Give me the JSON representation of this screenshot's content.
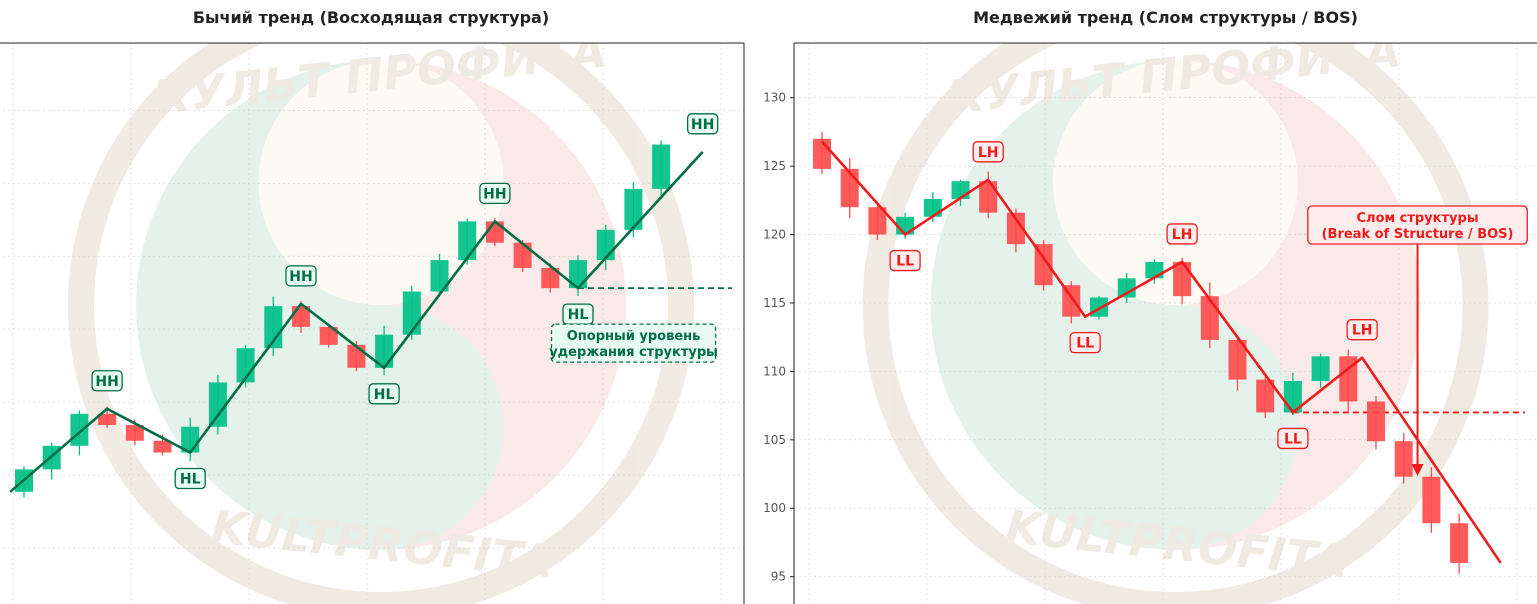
{
  "watermark": {
    "text_top": "КУЛЬТ ПРОФИТА",
    "text_bottom": "KULTPROFITA"
  },
  "colors": {
    "up": "#00c087",
    "down": "#ff4d4d",
    "bull_line": "#006e44",
    "bear_line": "#ee1c1c",
    "bull_label_bg": "#e8fbf3",
    "bear_label_bg": "#ffecec"
  },
  "chart_data": [
    {
      "type": "candlestick",
      "title": "Бычий тренд (Восходящая структура)",
      "xlabel": "",
      "ylabel": "",
      "ylim": [
        0,
        100
      ],
      "y_tick_labels_visible": false,
      "grid": true,
      "candles": [
        {
          "o": 20.0,
          "h": 24.5,
          "l": 19.0,
          "c": 24.0
        },
        {
          "o": 24.0,
          "h": 28.7,
          "l": 22.2,
          "c": 28.2
        },
        {
          "o": 28.2,
          "h": 34.5,
          "l": 26.5,
          "c": 33.9
        },
        {
          "o": 33.9,
          "h": 35.2,
          "l": 31.4,
          "c": 31.9
        },
        {
          "o": 31.9,
          "h": 32.9,
          "l": 28.3,
          "c": 29.1
        },
        {
          "o": 29.1,
          "h": 30.2,
          "l": 26.5,
          "c": 27.0
        },
        {
          "o": 27.0,
          "h": 33.2,
          "l": 25.4,
          "c": 31.6
        },
        {
          "o": 31.6,
          "h": 40.8,
          "l": 30.2,
          "c": 39.5
        },
        {
          "o": 39.5,
          "h": 46.2,
          "l": 38.6,
          "c": 45.6
        },
        {
          "o": 45.6,
          "h": 54.8,
          "l": 44.2,
          "c": 53.1
        },
        {
          "o": 53.1,
          "h": 54.0,
          "l": 48.3,
          "c": 49.4
        },
        {
          "o": 49.4,
          "h": 49.9,
          "l": 45.7,
          "c": 46.2
        },
        {
          "o": 46.2,
          "h": 46.9,
          "l": 41.5,
          "c": 42.1
        },
        {
          "o": 42.1,
          "h": 49.6,
          "l": 40.8,
          "c": 48.0
        },
        {
          "o": 48.0,
          "h": 56.7,
          "l": 47.1,
          "c": 55.7
        },
        {
          "o": 55.7,
          "h": 62.4,
          "l": 54.8,
          "c": 61.3
        },
        {
          "o": 61.3,
          "h": 68.7,
          "l": 60.5,
          "c": 68.2
        },
        {
          "o": 68.2,
          "h": 68.8,
          "l": 63.8,
          "c": 64.4
        },
        {
          "o": 64.4,
          "h": 64.9,
          "l": 59.2,
          "c": 59.9
        },
        {
          "o": 59.9,
          "h": 60.7,
          "l": 55.5,
          "c": 56.3
        },
        {
          "o": 56.3,
          "h": 62.1,
          "l": 54.9,
          "c": 61.3
        },
        {
          "o": 61.3,
          "h": 67.6,
          "l": 59.5,
          "c": 66.7
        },
        {
          "o": 66.7,
          "h": 75.2,
          "l": 65.4,
          "c": 74.0
        },
        {
          "o": 74.0,
          "h": 82.6,
          "l": 72.7,
          "c": 81.9
        }
      ],
      "structure_line": [
        {
          "i": -0.5,
          "y": 20.0
        },
        {
          "i": 3,
          "y": 34.8
        },
        {
          "i": 6,
          "y": 27.0
        },
        {
          "i": 10,
          "y": 53.5
        },
        {
          "i": 13,
          "y": 42.1
        },
        {
          "i": 17,
          "y": 68.2
        },
        {
          "i": 20,
          "y": 56.3
        },
        {
          "i": 24.5,
          "y": 80.6
        }
      ],
      "support_level": {
        "y": 56.3,
        "from_i": 20
      },
      "annotations": [
        {
          "text": "HH",
          "i": 3,
          "y": 34.8,
          "pos": "above"
        },
        {
          "text": "HL",
          "i": 6,
          "y": 27.0,
          "pos": "below"
        },
        {
          "text": "HH",
          "i": 10,
          "y": 53.5,
          "pos": "above"
        },
        {
          "text": "HL",
          "i": 13,
          "y": 42.1,
          "pos": "below"
        },
        {
          "text": "HH",
          "i": 17,
          "y": 68.2,
          "pos": "above"
        },
        {
          "text": "HL",
          "i": 20,
          "y": 56.3,
          "pos": "below"
        },
        {
          "text": "HH",
          "i": 24.5,
          "y": 80.6,
          "pos": "above"
        }
      ],
      "note": {
        "lines": [
          "Опорный уровень",
          "удержания структуры"
        ]
      }
    },
    {
      "type": "candlestick",
      "title": "Медвежий тренд (Слом структуры / BOS)",
      "xlabel": "",
      "ylabel": "",
      "ylim": [
        93,
        134
      ],
      "yticks": [
        95,
        100,
        105,
        110,
        115,
        120,
        125,
        130
      ],
      "grid": true,
      "candles": [
        {
          "o": 127.0,
          "h": 127.5,
          "l": 124.4,
          "c": 124.8
        },
        {
          "o": 124.8,
          "h": 125.6,
          "l": 121.2,
          "c": 122.0
        },
        {
          "o": 122.0,
          "h": 122.4,
          "l": 119.6,
          "c": 120.0
        },
        {
          "o": 120.0,
          "h": 121.6,
          "l": 119.7,
          "c": 121.3
        },
        {
          "o": 121.3,
          "h": 123.1,
          "l": 120.9,
          "c": 122.6
        },
        {
          "o": 122.6,
          "h": 124.0,
          "l": 122.1,
          "c": 123.9
        },
        {
          "o": 123.9,
          "h": 124.6,
          "l": 121.2,
          "c": 121.6
        },
        {
          "o": 121.6,
          "h": 121.9,
          "l": 118.7,
          "c": 119.3
        },
        {
          "o": 119.3,
          "h": 119.6,
          "l": 115.9,
          "c": 116.3
        },
        {
          "o": 116.3,
          "h": 116.6,
          "l": 113.5,
          "c": 114.0
        },
        {
          "o": 114.0,
          "h": 115.5,
          "l": 113.8,
          "c": 115.4
        },
        {
          "o": 115.4,
          "h": 117.2,
          "l": 115.0,
          "c": 116.8
        },
        {
          "o": 116.8,
          "h": 118.2,
          "l": 116.4,
          "c": 118.0
        },
        {
          "o": 118.0,
          "h": 118.3,
          "l": 114.9,
          "c": 115.5
        },
        {
          "o": 115.5,
          "h": 116.5,
          "l": 111.7,
          "c": 112.3
        },
        {
          "o": 112.3,
          "h": 112.6,
          "l": 108.6,
          "c": 109.4
        },
        {
          "o": 109.4,
          "h": 109.6,
          "l": 106.6,
          "c": 107.0
        },
        {
          "o": 107.0,
          "h": 109.9,
          "l": 106.8,
          "c": 109.3
        },
        {
          "o": 109.3,
          "h": 111.3,
          "l": 108.8,
          "c": 111.1
        },
        {
          "o": 111.1,
          "h": 111.6,
          "l": 107.0,
          "c": 107.8
        },
        {
          "o": 107.8,
          "h": 108.2,
          "l": 104.3,
          "c": 104.9
        },
        {
          "o": 104.9,
          "h": 105.5,
          "l": 101.8,
          "c": 102.3
        },
        {
          "o": 102.3,
          "h": 103.0,
          "l": 98.2,
          "c": 98.9
        },
        {
          "o": 98.9,
          "h": 99.6,
          "l": 95.2,
          "c": 96.0
        }
      ],
      "structure_line": [
        {
          "i": 0,
          "y": 126.8
        },
        {
          "i": 3,
          "y": 120.0
        },
        {
          "i": 6,
          "y": 124.0
        },
        {
          "i": 9.5,
          "y": 114.0
        },
        {
          "i": 13,
          "y": 118.0
        },
        {
          "i": 17,
          "y": 107.0
        },
        {
          "i": 19.5,
          "y": 111.0
        },
        {
          "i": 24.5,
          "y": 96.0
        }
      ],
      "bos_level": {
        "y": 107.0,
        "from_i": 17
      },
      "annotations": [
        {
          "text": "LL",
          "i": 3,
          "y": 120.0,
          "pos": "below"
        },
        {
          "text": "LH",
          "i": 6,
          "y": 124.0,
          "pos": "above"
        },
        {
          "text": "LL",
          "i": 9.5,
          "y": 114.0,
          "pos": "below"
        },
        {
          "text": "LH",
          "i": 13,
          "y": 118.0,
          "pos": "above"
        },
        {
          "text": "LL",
          "i": 17,
          "y": 107.0,
          "pos": "below"
        },
        {
          "text": "LH",
          "i": 19.5,
          "y": 111.0,
          "pos": "above"
        }
      ],
      "bos_callout": {
        "lines": [
          "Слом структуры",
          "(Break of Structure / BOS)"
        ],
        "arrow_to": {
          "i": 21.5,
          "y": 102.5
        }
      }
    }
  ]
}
